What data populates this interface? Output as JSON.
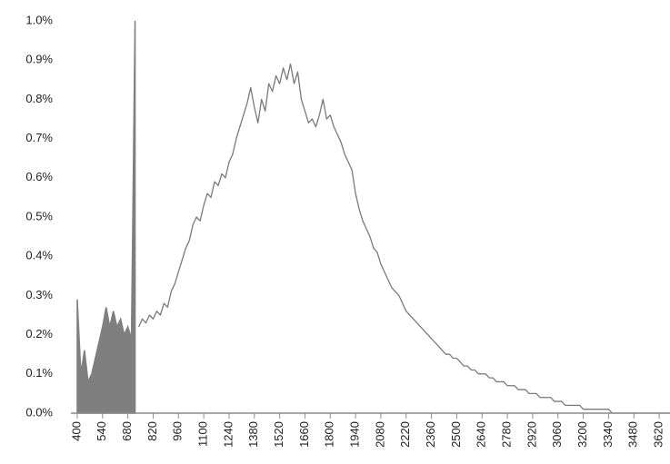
{
  "chart_data": {
    "type": "line",
    "xlim": [
      365,
      3680
    ],
    "xticks": [
      400,
      540,
      680,
      820,
      960,
      1100,
      1240,
      1380,
      1520,
      1660,
      1800,
      1940,
      2080,
      2220,
      2360,
      2500,
      2640,
      2780,
      2920,
      3060,
      3200,
      3340,
      3480,
      3620
    ],
    "ylim": [
      0,
      1.0
    ],
    "yticks": [
      {
        "value": 0,
        "label": "0.0%"
      },
      {
        "value": 0.1,
        "label": "0.1%"
      },
      {
        "value": 0.2,
        "label": "0.2%"
      },
      {
        "value": 0.3,
        "label": "0.3%"
      },
      {
        "value": 0.4,
        "label": "0.4%"
      },
      {
        "value": 0.5,
        "label": "0.5%"
      },
      {
        "value": 0.6,
        "label": "0.6%"
      },
      {
        "value": 0.7,
        "label": "0.7%"
      },
      {
        "value": 0.8,
        "label": "0.8%"
      },
      {
        "value": 0.9,
        "label": "0.9%"
      },
      {
        "value": 1.0,
        "label": "1.0%"
      }
    ],
    "grid": false,
    "series": [
      {
        "color": "#7f7f7f",
        "area": true,
        "x": [
          400,
          420,
          440,
          460,
          480,
          500,
          520,
          540,
          560,
          580,
          600,
          620,
          640,
          660,
          680,
          700,
          720
        ],
        "values": [
          0.29,
          0.1,
          0.16,
          0.08,
          0.1,
          0.14,
          0.18,
          0.22,
          0.27,
          0.22,
          0.26,
          0.22,
          0.24,
          0.2,
          0.22,
          0.19,
          1.0
        ]
      },
      {
        "color": "#7a7a7a",
        "area": false,
        "x": [
          740,
          760,
          780,
          800,
          820,
          840,
          860,
          880,
          900,
          920,
          940,
          960,
          980,
          1000,
          1020,
          1040,
          1060,
          1080,
          1100,
          1120,
          1140,
          1160,
          1180,
          1200,
          1220,
          1240,
          1260,
          1280,
          1300,
          1320,
          1340,
          1360,
          1380,
          1400,
          1420,
          1440,
          1460,
          1480,
          1500,
          1520,
          1540,
          1560,
          1580,
          1600,
          1620,
          1640,
          1660,
          1680,
          1700,
          1720,
          1740,
          1760,
          1780,
          1800,
          1820,
          1840,
          1860,
          1880,
          1900,
          1920,
          1940,
          1960,
          1980,
          2000,
          2020,
          2040,
          2060,
          2080,
          2100,
          2120,
          2140,
          2160,
          2180,
          2200,
          2220,
          2240,
          2260,
          2280,
          2300,
          2320,
          2340,
          2360,
          2380,
          2400,
          2420,
          2440,
          2460,
          2480,
          2500,
          2520,
          2540,
          2560,
          2580,
          2600,
          2620,
          2640,
          2660,
          2680,
          2700,
          2720,
          2740,
          2760,
          2780,
          2800,
          2820,
          2840,
          2860,
          2880,
          2900,
          2920,
          2940,
          2960,
          2980,
          3000,
          3020,
          3040,
          3060,
          3080,
          3100,
          3120,
          3140,
          3160,
          3180,
          3200,
          3220,
          3240,
          3260,
          3280,
          3300,
          3320,
          3340,
          3360,
          3380,
          3400,
          3420,
          3440,
          3460,
          3480,
          3500,
          3520,
          3540,
          3560,
          3580,
          3600,
          3620,
          3640,
          3660,
          3680
        ],
        "values": [
          0.22,
          0.24,
          0.23,
          0.25,
          0.24,
          0.26,
          0.25,
          0.28,
          0.27,
          0.31,
          0.33,
          0.36,
          0.39,
          0.42,
          0.44,
          0.48,
          0.5,
          0.49,
          0.53,
          0.56,
          0.55,
          0.59,
          0.58,
          0.61,
          0.6,
          0.64,
          0.66,
          0.7,
          0.73,
          0.76,
          0.79,
          0.83,
          0.78,
          0.74,
          0.8,
          0.77,
          0.84,
          0.82,
          0.86,
          0.84,
          0.88,
          0.85,
          0.89,
          0.84,
          0.87,
          0.8,
          0.77,
          0.74,
          0.75,
          0.73,
          0.76,
          0.8,
          0.75,
          0.76,
          0.73,
          0.71,
          0.69,
          0.66,
          0.64,
          0.62,
          0.56,
          0.52,
          0.49,
          0.47,
          0.45,
          0.42,
          0.41,
          0.38,
          0.36,
          0.34,
          0.32,
          0.31,
          0.3,
          0.28,
          0.26,
          0.25,
          0.24,
          0.23,
          0.22,
          0.21,
          0.2,
          0.19,
          0.18,
          0.17,
          0.16,
          0.15,
          0.15,
          0.14,
          0.14,
          0.13,
          0.12,
          0.12,
          0.11,
          0.11,
          0.1,
          0.1,
          0.1,
          0.09,
          0.09,
          0.08,
          0.08,
          0.08,
          0.07,
          0.07,
          0.07,
          0.06,
          0.06,
          0.06,
          0.05,
          0.05,
          0.05,
          0.04,
          0.04,
          0.04,
          0.04,
          0.03,
          0.03,
          0.03,
          0.02,
          0.02,
          0.02,
          0.02,
          0.02,
          0.01,
          0.01,
          0.01,
          0.01,
          0.01,
          0.01,
          0.01,
          0.01,
          0,
          0,
          0,
          0,
          0,
          0,
          0,
          0,
          0,
          0,
          0,
          0,
          0,
          0,
          0,
          0,
          0
        ]
      }
    ]
  }
}
